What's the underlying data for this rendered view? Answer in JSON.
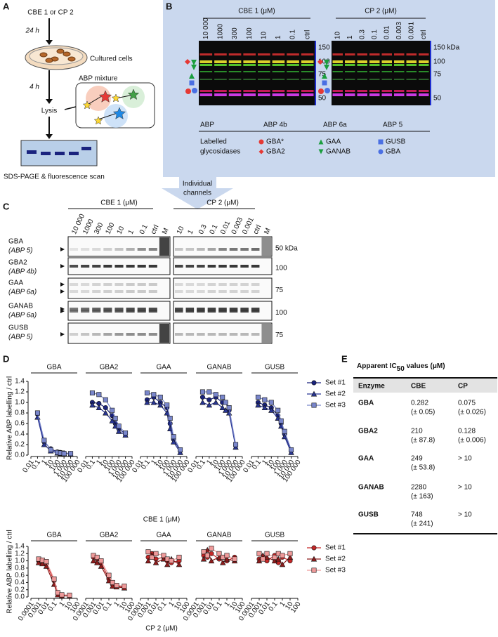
{
  "panel_a": {
    "label": "A",
    "start": "CBE 1 or CP 2",
    "step1": "24 h",
    "cells": "Cultured cells",
    "step2": "4 h",
    "probe": "ABP mixture",
    "lysis": "Lysis",
    "readout": "SDS-PAGE & fluorescence scan"
  },
  "panel_b": {
    "label": "B",
    "gels": [
      {
        "title": "CBE 1 (μM)",
        "lanes": [
          "10 000",
          "1000",
          "300",
          "100",
          "10",
          "1",
          "0.1",
          "ctrl"
        ]
      },
      {
        "title": "CP 2 (μM)",
        "lanes": [
          "10",
          "1",
          "0.3",
          "0.1",
          "0.01",
          "0.003",
          "0.001",
          "ctrl"
        ]
      }
    ],
    "markers": [
      "150 kDa",
      "100",
      "75",
      "50"
    ],
    "legend": {
      "header": [
        "ABP",
        "ABP 4b",
        "ABP 6a",
        "ABP 5"
      ],
      "row_label": [
        "Labelled",
        "glycosidases"
      ],
      "rows": [
        [
          "GBA*",
          "GAA",
          "GUSB"
        ],
        [
          "GBA2",
          "GANAB",
          "GBA"
        ]
      ]
    }
  },
  "arrow": [
    "Individual",
    "channels"
  ],
  "panel_c": {
    "label": "C",
    "gels": [
      {
        "title": "CBE 1 (μM)",
        "lanes": [
          "10 000",
          "1000",
          "300",
          "100",
          "10",
          "1",
          "0.1",
          "ctrl",
          "M"
        ]
      },
      {
        "title": "CP 2 (μM)",
        "lanes": [
          "10",
          "1",
          "0.3",
          "0.1",
          "0.01",
          "0.003",
          "0.001",
          "ctrl",
          "M"
        ]
      }
    ],
    "rows": [
      {
        "enzyme": "GBA",
        "probe": "(ABP 5)",
        "marker": "50 kDa"
      },
      {
        "enzyme": "GBA2",
        "probe": "(ABP 4b)",
        "marker": "100"
      },
      {
        "enzyme": "GAA",
        "probe": "(ABP 6a)",
        "marker": "75"
      },
      {
        "enzyme": "GANAB",
        "probe": "(ABP 6a)",
        "marker": "100"
      },
      {
        "enzyme": "GUSB",
        "probe": "(ABP 5)",
        "marker": "75"
      }
    ]
  },
  "panel_d": {
    "label": "D",
    "rows": [
      {
        "type": "scatter",
        "ylabel": "Relative ABP labelling / ctrl",
        "xlabel": "CBE 1 (μM)",
        "log_x": true,
        "xlim": [
          0.01,
          100000
        ],
        "xticks": [
          0.01,
          0.1,
          1,
          10,
          100,
          {
            "value": 1000,
            "label": "1 000"
          },
          {
            "value": 10000,
            "label": "10 000"
          },
          {
            "value": 100000,
            "label": "100 000"
          }
        ],
        "ylim": [
          0,
          1.4
        ],
        "yticks": [
          {
            "value": 0,
            "label": "0.0"
          },
          0.2,
          0.4,
          0.6,
          0.8,
          {
            "value": 1,
            "label": "1.0"
          },
          1.2,
          1.4
        ],
        "x": [
          0.1,
          1,
          10,
          100,
          300,
          1000,
          10000
        ],
        "legend": [
          {
            "name": "Set #1",
            "color": "#1a237e",
            "marker": "circle"
          },
          {
            "name": "Set #2",
            "color": "#283593",
            "marker": "triangle"
          },
          {
            "name": "Set #3",
            "color": "#7986cb",
            "marker": "square"
          }
        ],
        "charts": [
          {
            "title": "GBA",
            "series": [
              {
                "values": [
                  0.78,
                  0.25,
                  0.12,
                  0.06,
                  0.05,
                  0.04,
                  0.03
                ]
              },
              {
                "values": [
                  0.72,
                  0.2,
                  0.08,
                  0.04,
                  0.03,
                  0.03,
                  0.02
                ]
              },
              {
                "values": [
                  0.8,
                  0.28,
                  0.1,
                  0.05,
                  0.04,
                  0.03,
                  0.03
                ]
              }
            ]
          },
          {
            "title": "GBA2",
            "series": [
              {
                "values": [
                  1.0,
                  0.98,
                  0.9,
                  0.75,
                  0.6,
                  0.5,
                  0.4
                ]
              },
              {
                "values": [
                  0.95,
                  0.9,
                  0.8,
                  0.65,
                  0.55,
                  0.45,
                  0.38
                ]
              },
              {
                "values": [
                  1.18,
                  1.15,
                  1.05,
                  0.85,
                  0.7,
                  0.55,
                  0.42
                ]
              }
            ]
          },
          {
            "title": "GAA",
            "series": [
              {
                "values": [
                  1.05,
                  1.1,
                  1.0,
                  0.9,
                  0.6,
                  0.3,
                  0.08
                ]
              },
              {
                "values": [
                  1.0,
                  1.0,
                  0.95,
                  0.8,
                  0.5,
                  0.25,
                  0.05
                ]
              },
              {
                "values": [
                  1.18,
                  1.15,
                  1.1,
                  0.95,
                  0.7,
                  0.35,
                  0.1
                ]
              }
            ]
          },
          {
            "title": "GANAB",
            "series": [
              {
                "values": [
                  1.1,
                  1.05,
                  1.1,
                  1.0,
                  1.0,
                  0.85,
                  0.18
                ]
              },
              {
                "values": [
                  1.0,
                  0.95,
                  1.0,
                  0.9,
                  0.85,
                  0.8,
                  0.15
                ]
              },
              {
                "values": [
                  1.2,
                  1.2,
                  1.15,
                  1.1,
                  1.0,
                  0.9,
                  0.2
                ]
              }
            ]
          },
          {
            "title": "GUSB",
            "series": [
              {
                "values": [
                  1.0,
                  0.95,
                  0.9,
                  0.75,
                  0.6,
                  0.4,
                  0.08
                ]
              },
              {
                "values": [
                  0.95,
                  0.9,
                  0.85,
                  0.7,
                  0.55,
                  0.35,
                  0.05
                ]
              },
              {
                "values": [
                  1.1,
                  1.05,
                  1.0,
                  0.85,
                  0.65,
                  0.45,
                  0.1
                ]
              }
            ]
          }
        ]
      },
      {
        "type": "scatter",
        "ylabel": "Relative ABP labelling / ctrl",
        "xlabel": "CP 2 (μM)",
        "log_x": true,
        "xlim": [
          0.0001,
          100
        ],
        "xticks": [
          0.0001,
          0.001,
          0.01,
          0.1,
          1,
          10,
          100
        ],
        "ylim": [
          0,
          1.4
        ],
        "yticks": [
          {
            "value": 0,
            "label": "0.0"
          },
          0.2,
          0.4,
          0.6,
          0.8,
          {
            "value": 1,
            "label": "1.0"
          },
          1.2,
          1.4
        ],
        "x": [
          0.001,
          0.003,
          0.01,
          0.1,
          0.3,
          1,
          10
        ],
        "legend": [
          {
            "name": "Set #1",
            "color": "#c62828",
            "marker": "circle"
          },
          {
            "name": "Set #2",
            "color": "#8e1c1c",
            "marker": "triangle"
          },
          {
            "name": "Set #3",
            "color": "#ef9a9a",
            "marker": "square"
          }
        ],
        "charts": [
          {
            "title": "GBA",
            "series": [
              {
                "values": [
                  1.0,
                  1.0,
                  0.92,
                  0.45,
                  0.1,
                  0.05,
                  0.04
                ]
              },
              {
                "values": [
                  0.95,
                  0.92,
                  0.85,
                  0.35,
                  0.06,
                  0.03,
                  0.03
                ]
              },
              {
                "values": [
                  1.05,
                  1.02,
                  0.98,
                  0.5,
                  0.12,
                  0.06,
                  0.05
                ]
              }
            ]
          },
          {
            "title": "GBA2",
            "series": [
              {
                "values": [
                  1.1,
                  1.05,
                  0.95,
                  0.5,
                  0.35,
                  0.3,
                  0.28
                ]
              },
              {
                "values": [
                  1.0,
                  0.95,
                  0.85,
                  0.45,
                  0.3,
                  0.28,
                  0.25
                ]
              },
              {
                "values": [
                  1.15,
                  1.1,
                  1.0,
                  0.6,
                  0.4,
                  0.32,
                  0.3
                ]
              }
            ]
          },
          {
            "title": "GAA",
            "series": [
              {
                "values": [
                  1.1,
                  1.2,
                  1.05,
                  1.1,
                  1.0,
                  0.95,
                  1.0
                ]
              },
              {
                "values": [
                  1.0,
                  1.15,
                  0.95,
                  1.05,
                  0.9,
                  1.05,
                  0.9
                ]
              },
              {
                "values": [
                  1.25,
                  1.1,
                  1.2,
                  1.15,
                  1.05,
                  1.0,
                  1.1
                ]
              }
            ]
          },
          {
            "title": "GANAB",
            "series": [
              {
                "values": [
                  1.15,
                  1.1,
                  1.2,
                  1.05,
                  1.1,
                  1.0,
                  1.1
                ]
              },
              {
                "values": [
                  1.05,
                  1.3,
                  1.0,
                  1.1,
                  0.95,
                  1.05,
                  1.0
                ]
              },
              {
                "values": [
                  1.25,
                  1.15,
                  1.35,
                  1.2,
                  1.1,
                  1.15,
                  1.05
                ]
              }
            ]
          },
          {
            "title": "GUSB",
            "series": [
              {
                "values": [
                  1.05,
                  1.1,
                  1.0,
                  1.15,
                  0.95,
                  1.1,
                  1.0
                ]
              },
              {
                "values": [
                  1.0,
                  1.15,
                  1.1,
                  1.0,
                  1.05,
                  0.9,
                  1.1
                ]
              },
              {
                "values": [
                  1.2,
                  1.05,
                  1.2,
                  1.1,
                  1.2,
                  1.15,
                  1.2
                ]
              }
            ]
          }
        ]
      }
    ]
  },
  "panel_e": {
    "label": "E",
    "title_pre": "Apparent IC",
    "title_sub": "50",
    "title_post": " values (μM)",
    "header": [
      "Enzyme",
      "CBE",
      "CP"
    ],
    "rows": [
      {
        "enzyme": "GBA",
        "cbe": [
          "0.282",
          "(± 0.05)"
        ],
        "cp": [
          "0.075",
          "(± 0.026)"
        ]
      },
      {
        "enzyme": "GBA2",
        "cbe": [
          "210",
          "(± 87.8)"
        ],
        "cp": [
          "0.128",
          "(± 0.006)"
        ]
      },
      {
        "enzyme": "GAA",
        "cbe": [
          "249",
          "(± 53.8)"
        ],
        "cp": [
          "> 10"
        ]
      },
      {
        "enzyme": "GANAB",
        "cbe": [
          "2280",
          "(± 163)"
        ],
        "cp": [
          "> 10"
        ]
      },
      {
        "enzyme": "GUSB",
        "cbe": [
          "748",
          "(± 241)"
        ],
        "cp": [
          "> 10"
        ]
      }
    ]
  }
}
